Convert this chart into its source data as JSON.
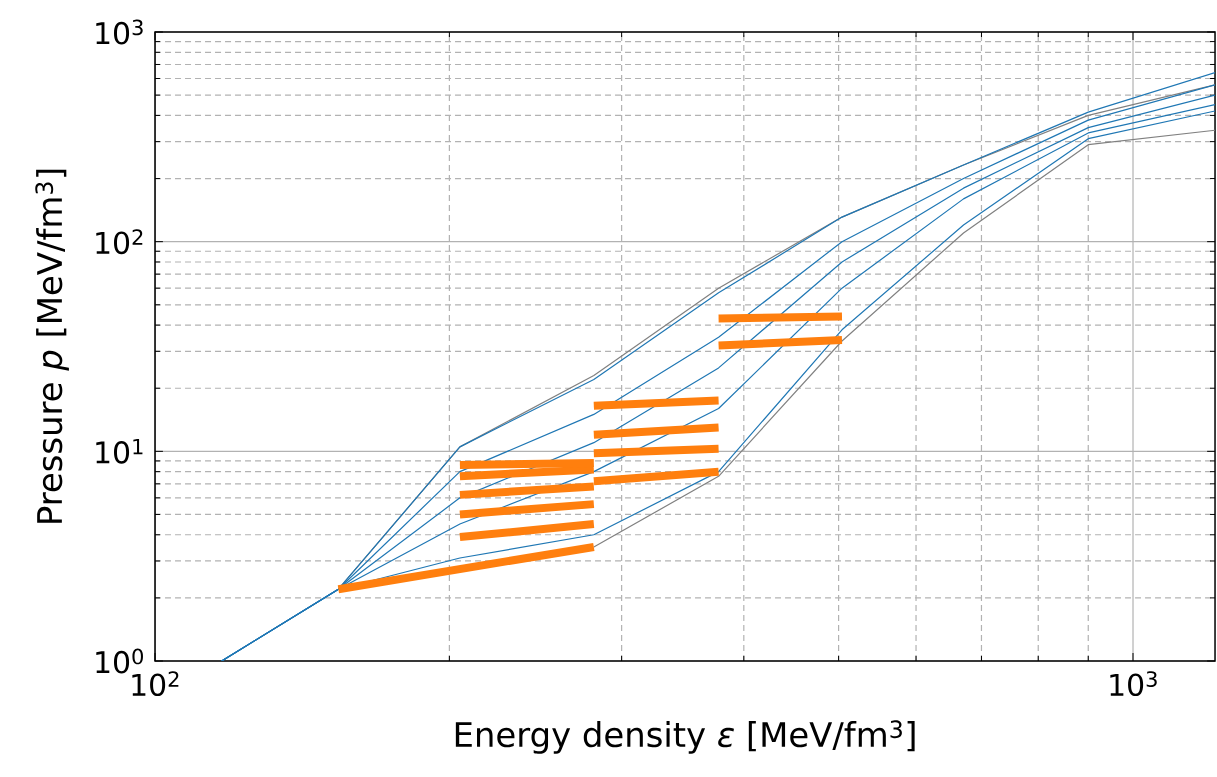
{
  "chart_data": {
    "type": "line",
    "log": "xy",
    "grid": true,
    "line_style": "solid",
    "marker": "none",
    "xlabel": "Energy density *ε* [MeV/fm$^{3}$]",
    "ylabel": "Pressure *p* [MeV/fm$^{3}$]",
    "xlim": [
      100,
      1213
    ],
    "ylim": [
      1,
      1000
    ],
    "xticks": [
      {
        "value": 100,
        "label": "10$^{2}$"
      },
      {
        "value": 1000,
        "label": "10$^{3}$"
      }
    ],
    "yticks": [
      {
        "value": 1,
        "label": "10$^{0}$"
      },
      {
        "value": 10,
        "label": "10$^{1}$"
      },
      {
        "value": 100,
        "label": "10$^{2}$"
      },
      {
        "value": 1000,
        "label": "10$^{3}$"
      }
    ],
    "series": [
      {
        "color": "#808080",
        "x": [
          154,
          205,
          281,
          377,
          504,
          671,
          900,
          1213
        ],
        "values": [
          2.2,
          10.5,
          23,
          60,
          131,
          232,
          400,
          560
        ]
      },
      {
        "color": "#808080",
        "x": [
          281,
          377,
          504,
          671,
          900,
          1213
        ],
        "values": [
          3.5,
          7.6,
          33.6,
          110,
          290,
          340
        ]
      },
      {
        "color": "#1f77b4",
        "x": [
          117,
          154,
          205,
          281,
          377,
          504,
          671,
          900,
          1213
        ],
        "values": [
          1,
          2.2,
          10.5,
          22,
          57,
          131,
          232,
          415,
          640
        ]
      },
      {
        "color": "#1f77b4",
        "x": [
          117,
          154,
          205,
          281,
          377,
          504,
          671,
          900,
          1213
        ],
        "values": [
          1,
          2.2,
          8,
          15,
          35,
          100,
          200,
          380,
          560
        ]
      },
      {
        "color": "#1f77b4",
        "x": [
          117,
          154,
          205,
          281,
          377,
          504,
          671,
          900,
          1213
        ],
        "values": [
          1,
          2.2,
          6,
          11,
          25,
          80,
          180,
          350,
          500
        ]
      },
      {
        "color": "#1f77b4",
        "x": [
          117,
          154,
          205,
          281,
          377,
          504,
          671,
          900,
          1213
        ],
        "values": [
          1,
          2.2,
          4.5,
          8,
          16,
          60,
          160,
          330,
          450
        ]
      },
      {
        "color": "#1f77b4",
        "x": [
          117,
          154,
          205,
          281,
          377,
          504,
          671,
          900,
          1213
        ],
        "values": [
          1,
          2.2,
          3.1,
          4,
          8,
          38,
          120,
          310,
          420
        ]
      },
      {
        "color": "#ff7f0e",
        "x": [
          154,
          281
        ],
        "values": [
          2.2,
          3.5
        ]
      },
      {
        "color": "#ff7f0e",
        "x": [
          205,
          281
        ],
        "values": [
          3.9,
          4.5
        ]
      },
      {
        "color": "#ff7f0e",
        "x": [
          205,
          281
        ],
        "values": [
          5,
          5.6
        ]
      },
      {
        "color": "#ff7f0e",
        "x": [
          205,
          281
        ],
        "values": [
          6.2,
          6.8
        ]
      },
      {
        "color": "#ff7f0e",
        "x": [
          205,
          281
        ],
        "values": [
          7.6,
          8.2
        ]
      },
      {
        "color": "#ff7f0e",
        "x": [
          205,
          281
        ],
        "values": [
          8.6,
          8.8
        ]
      },
      {
        "color": "#ff7f0e",
        "x": [
          281,
          377
        ],
        "values": [
          7.2,
          8
        ]
      },
      {
        "color": "#ff7f0e",
        "x": [
          281,
          377
        ],
        "values": [
          9.8,
          10.3
        ]
      },
      {
        "color": "#ff7f0e",
        "x": [
          281,
          377
        ],
        "values": [
          12,
          13
        ]
      },
      {
        "color": "#ff7f0e",
        "x": [
          281,
          377
        ],
        "values": [
          16.5,
          17.5
        ]
      },
      {
        "color": "#ff7f0e",
        "x": [
          377,
          504
        ],
        "values": [
          43,
          44
        ]
      },
      {
        "color": "#ff7f0e",
        "x": [
          377,
          504
        ],
        "values": [
          32,
          34
        ]
      }
    ]
  }
}
